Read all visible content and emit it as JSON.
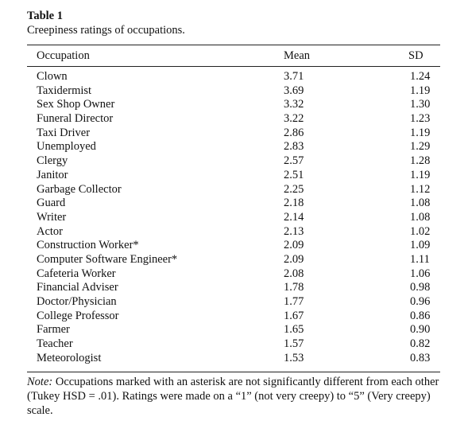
{
  "table": {
    "label": "Table 1",
    "caption": "Creepiness ratings of occupations.",
    "headers": {
      "occupation": "Occupation",
      "mean": "Mean",
      "sd": "SD"
    },
    "rows": [
      {
        "occupation": "Clown",
        "mean": "3.71",
        "sd": "1.24"
      },
      {
        "occupation": "Taxidermist",
        "mean": "3.69",
        "sd": "1.19"
      },
      {
        "occupation": "Sex Shop Owner",
        "mean": "3.32",
        "sd": "1.30"
      },
      {
        "occupation": "Funeral Director",
        "mean": "3.22",
        "sd": "1.23"
      },
      {
        "occupation": "Taxi Driver",
        "mean": "2.86",
        "sd": "1.19"
      },
      {
        "occupation": "Unemployed",
        "mean": "2.83",
        "sd": "1.29"
      },
      {
        "occupation": "Clergy",
        "mean": "2.57",
        "sd": "1.28"
      },
      {
        "occupation": "Janitor",
        "mean": "2.51",
        "sd": "1.19"
      },
      {
        "occupation": "Garbage Collector",
        "mean": "2.25",
        "sd": "1.12"
      },
      {
        "occupation": "Guard",
        "mean": "2.18",
        "sd": "1.08"
      },
      {
        "occupation": "Writer",
        "mean": "2.14",
        "sd": "1.08"
      },
      {
        "occupation": "Actor",
        "mean": "2.13",
        "sd": "1.02"
      },
      {
        "occupation": "Construction Worker*",
        "mean": "2.09",
        "sd": "1.09"
      },
      {
        "occupation": "Computer Software Engineer*",
        "mean": "2.09",
        "sd": "1.11"
      },
      {
        "occupation": "Cafeteria Worker",
        "mean": "2.08",
        "sd": "1.06"
      },
      {
        "occupation": "Financial Adviser",
        "mean": "1.78",
        "sd": "0.98"
      },
      {
        "occupation": "Doctor/Physician",
        "mean": "1.77",
        "sd": "0.96"
      },
      {
        "occupation": "College Professor",
        "mean": "1.67",
        "sd": "0.86"
      },
      {
        "occupation": "Farmer",
        "mean": "1.65",
        "sd": "0.90"
      },
      {
        "occupation": "Teacher",
        "mean": "1.57",
        "sd": "0.82"
      },
      {
        "occupation": "Meteorologist",
        "mean": "1.53",
        "sd": "0.83"
      }
    ],
    "note_label": "Note:",
    "note_text": " Occupations marked with an asterisk are not significantly different from each other (Tukey HSD = .01). Ratings were made on a “1” (not very creepy) to “5” (Very creepy) scale."
  }
}
